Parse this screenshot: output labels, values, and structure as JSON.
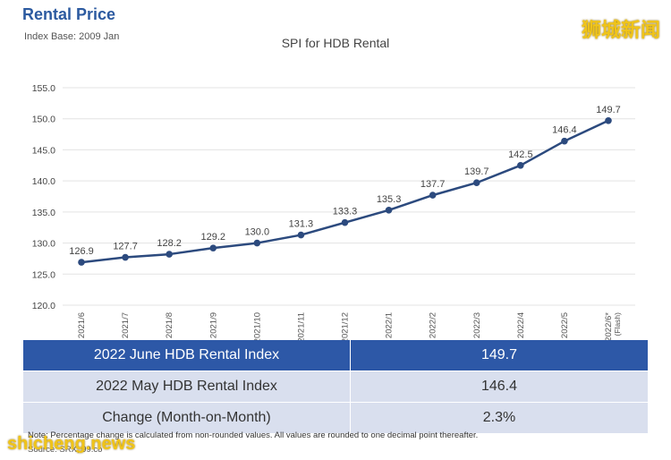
{
  "header": {
    "title": "Rental Price",
    "subtitle": "Index Base: 2009 Jan"
  },
  "watermarks": {
    "top": "狮城新闻",
    "bottom": "shicheng.news"
  },
  "chart_data": {
    "type": "line",
    "title": "SPI for HDB Rental",
    "categories": [
      "2021/6",
      "2021/7",
      "2021/8",
      "2021/9",
      "2021/10",
      "2021/11",
      "2021/12",
      "2022/1",
      "2022/2",
      "2022/3",
      "2022/4",
      "2022/5",
      "2022/6* (Flash)"
    ],
    "series": [
      {
        "values": [
          126.9,
          127.7,
          128.2,
          129.2,
          130.0,
          131.3,
          133.3,
          135.3,
          137.7,
          139.7,
          142.5,
          146.4,
          149.7
        ]
      }
    ],
    "ylim": [
      120,
      155
    ],
    "yticks": [
      "120.0",
      "125.0",
      "130.0",
      "135.0",
      "140.0",
      "145.0",
      "150.0",
      "155.0"
    ],
    "data_labels": [
      "126.9",
      "127.7",
      "128.2",
      "129.2",
      "130.0",
      "131.3",
      "133.3",
      "135.3",
      "137.7",
      "139.7",
      "142.5",
      "146.4",
      "149.7"
    ],
    "grid": true,
    "line_color": "#2c4a7e"
  },
  "table": {
    "rows": [
      {
        "label": "2022 June HDB Rental Index",
        "value": "149.7"
      },
      {
        "label": "2022 May HDB Rental Index",
        "value": "146.4"
      },
      {
        "label": "Change (Month-on-Month)",
        "value": "2.3%"
      }
    ]
  },
  "footer": {
    "note": "Note: Percentage change is calculated from non-rounded values.  All values are rounded to one decimal point thereafter.",
    "source": "Source: SRX, 99.co"
  }
}
